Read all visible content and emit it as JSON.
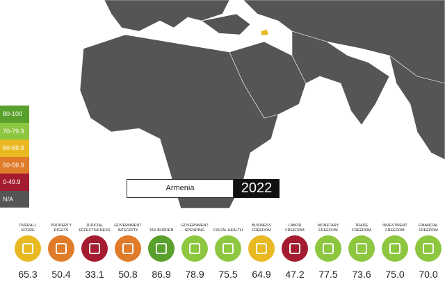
{
  "legend": [
    {
      "label": "80-100",
      "color": "#5aa02c"
    },
    {
      "label": "70-79.9",
      "color": "#8dc63f"
    },
    {
      "label": "60-69.9",
      "color": "#e8b923"
    },
    {
      "label": "50-59.9",
      "color": "#e07b2a"
    },
    {
      "label": "0-49.9",
      "color": "#a51c30"
    },
    {
      "label": "N/A",
      "color": "#555555"
    }
  ],
  "search": {
    "country": "Armenia",
    "year": "2022"
  },
  "indicators": [
    {
      "label": "OVERALL SCORE",
      "value": "65.3",
      "color": "#e8b923"
    },
    {
      "label": "PROPERTY RIGHTS",
      "value": "50.4",
      "color": "#e07b2a"
    },
    {
      "label": "JUDICIAL EFFECTIVENESS",
      "value": "33.1",
      "color": "#a51c30"
    },
    {
      "label": "GOVERNMENT INTEGRITY",
      "value": "50.8",
      "color": "#e07b2a"
    },
    {
      "label": "TAX BURDEN",
      "value": "86.9",
      "color": "#5aa02c"
    },
    {
      "label": "GOVERNMENT SPENDING",
      "value": "78.9",
      "color": "#8dc63f"
    },
    {
      "label": "FISCAL HEALTH",
      "value": "75.5",
      "color": "#8dc63f"
    },
    {
      "label": "BUSINESS FREEDOM",
      "value": "64.9",
      "color": "#e8b923"
    },
    {
      "label": "LABOR FREEDOM",
      "value": "47.2",
      "color": "#a51c30"
    },
    {
      "label": "MONETARY FREEDOM",
      "value": "77.5",
      "color": "#8dc63f"
    },
    {
      "label": "TRADE FREEDOM",
      "value": "73.6",
      "color": "#8dc63f"
    },
    {
      "label": "INVESTMENT FREEDOM",
      "value": "75.0",
      "color": "#8dc63f"
    },
    {
      "label": "FINANCIAL FREEDOM",
      "value": "70.0",
      "color": "#8dc63f"
    }
  ]
}
